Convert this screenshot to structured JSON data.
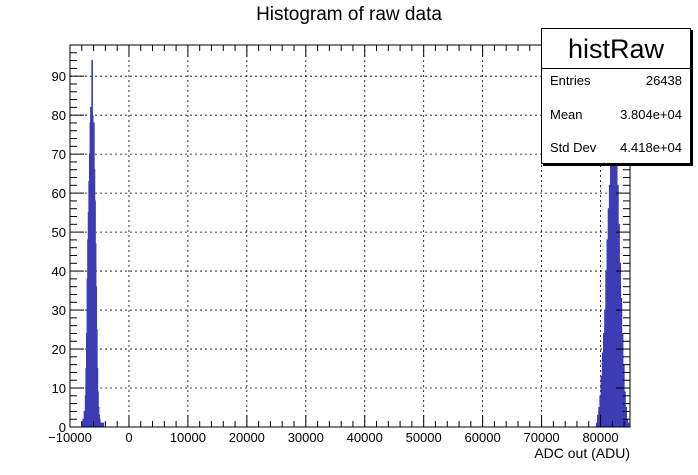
{
  "chart_data": {
    "type": "histogram",
    "title": "Histogram of raw data",
    "xlabel": "ADC out (ADU)",
    "ylabel": "",
    "xlim": [
      -10000,
      85000
    ],
    "ylim": [
      0,
      98
    ],
    "grid": true,
    "line_color": "#3c3cb4",
    "x_ticks": [
      -10000,
      0,
      10000,
      20000,
      30000,
      40000,
      50000,
      60000,
      70000,
      80000
    ],
    "x_tick_labels": [
      "−10000",
      "0",
      "10000",
      "20000",
      "30000",
      "40000",
      "50000",
      "60000",
      "70000",
      "80000"
    ],
    "y_ticks": [
      0,
      10,
      20,
      30,
      40,
      50,
      60,
      70,
      80,
      90
    ],
    "y_tick_labels": [
      "0",
      "10",
      "20",
      "30",
      "40",
      "50",
      "60",
      "70",
      "80",
      "90"
    ],
    "bin_width": 100,
    "peaks": [
      {
        "x": [
          -8000,
          -7800,
          -7600,
          -7400,
          -7300,
          -7200,
          -7100,
          -7000,
          -6900,
          -6800,
          -6700,
          -6600,
          -6500,
          -6400,
          -6300,
          -6200,
          -6100,
          -6000,
          -5900,
          -5800,
          -5700,
          -5600,
          -5500,
          -5400,
          -5300,
          -5200,
          -5100,
          -5000,
          -4900,
          -4800,
          -4600,
          -4400
        ],
        "y": [
          1,
          2,
          4,
          8,
          15,
          24,
          38,
          48,
          55,
          63,
          70,
          78,
          82,
          76,
          94,
          80,
          72,
          78,
          66,
          58,
          47,
          36,
          25,
          15,
          9,
          5,
          3,
          2,
          1,
          1,
          1,
          1
        ]
      },
      {
        "x": [
          79300,
          79500,
          79700,
          79900,
          80100,
          80300,
          80500,
          80700,
          80900,
          81100,
          81300,
          81500,
          81700,
          81900,
          82100,
          82300,
          82500,
          82700,
          82900,
          83100,
          83300,
          83500,
          83700,
          83900,
          84100,
          84300,
          84500,
          84700
        ],
        "y": [
          1,
          3,
          5,
          8,
          13,
          19,
          24,
          30,
          40,
          48,
          56,
          62,
          70,
          76,
          84,
          88,
          80,
          72,
          62,
          52,
          42,
          33,
          24,
          16,
          9,
          5,
          2,
          1
        ]
      }
    ]
  },
  "stats_box": {
    "name": "histRaw",
    "rows": [
      {
        "key": "Entries",
        "value": "26438"
      },
      {
        "key": "Mean",
        "value": "3.804e+04"
      },
      {
        "key": "Std Dev",
        "value": "4.418e+04"
      }
    ]
  }
}
